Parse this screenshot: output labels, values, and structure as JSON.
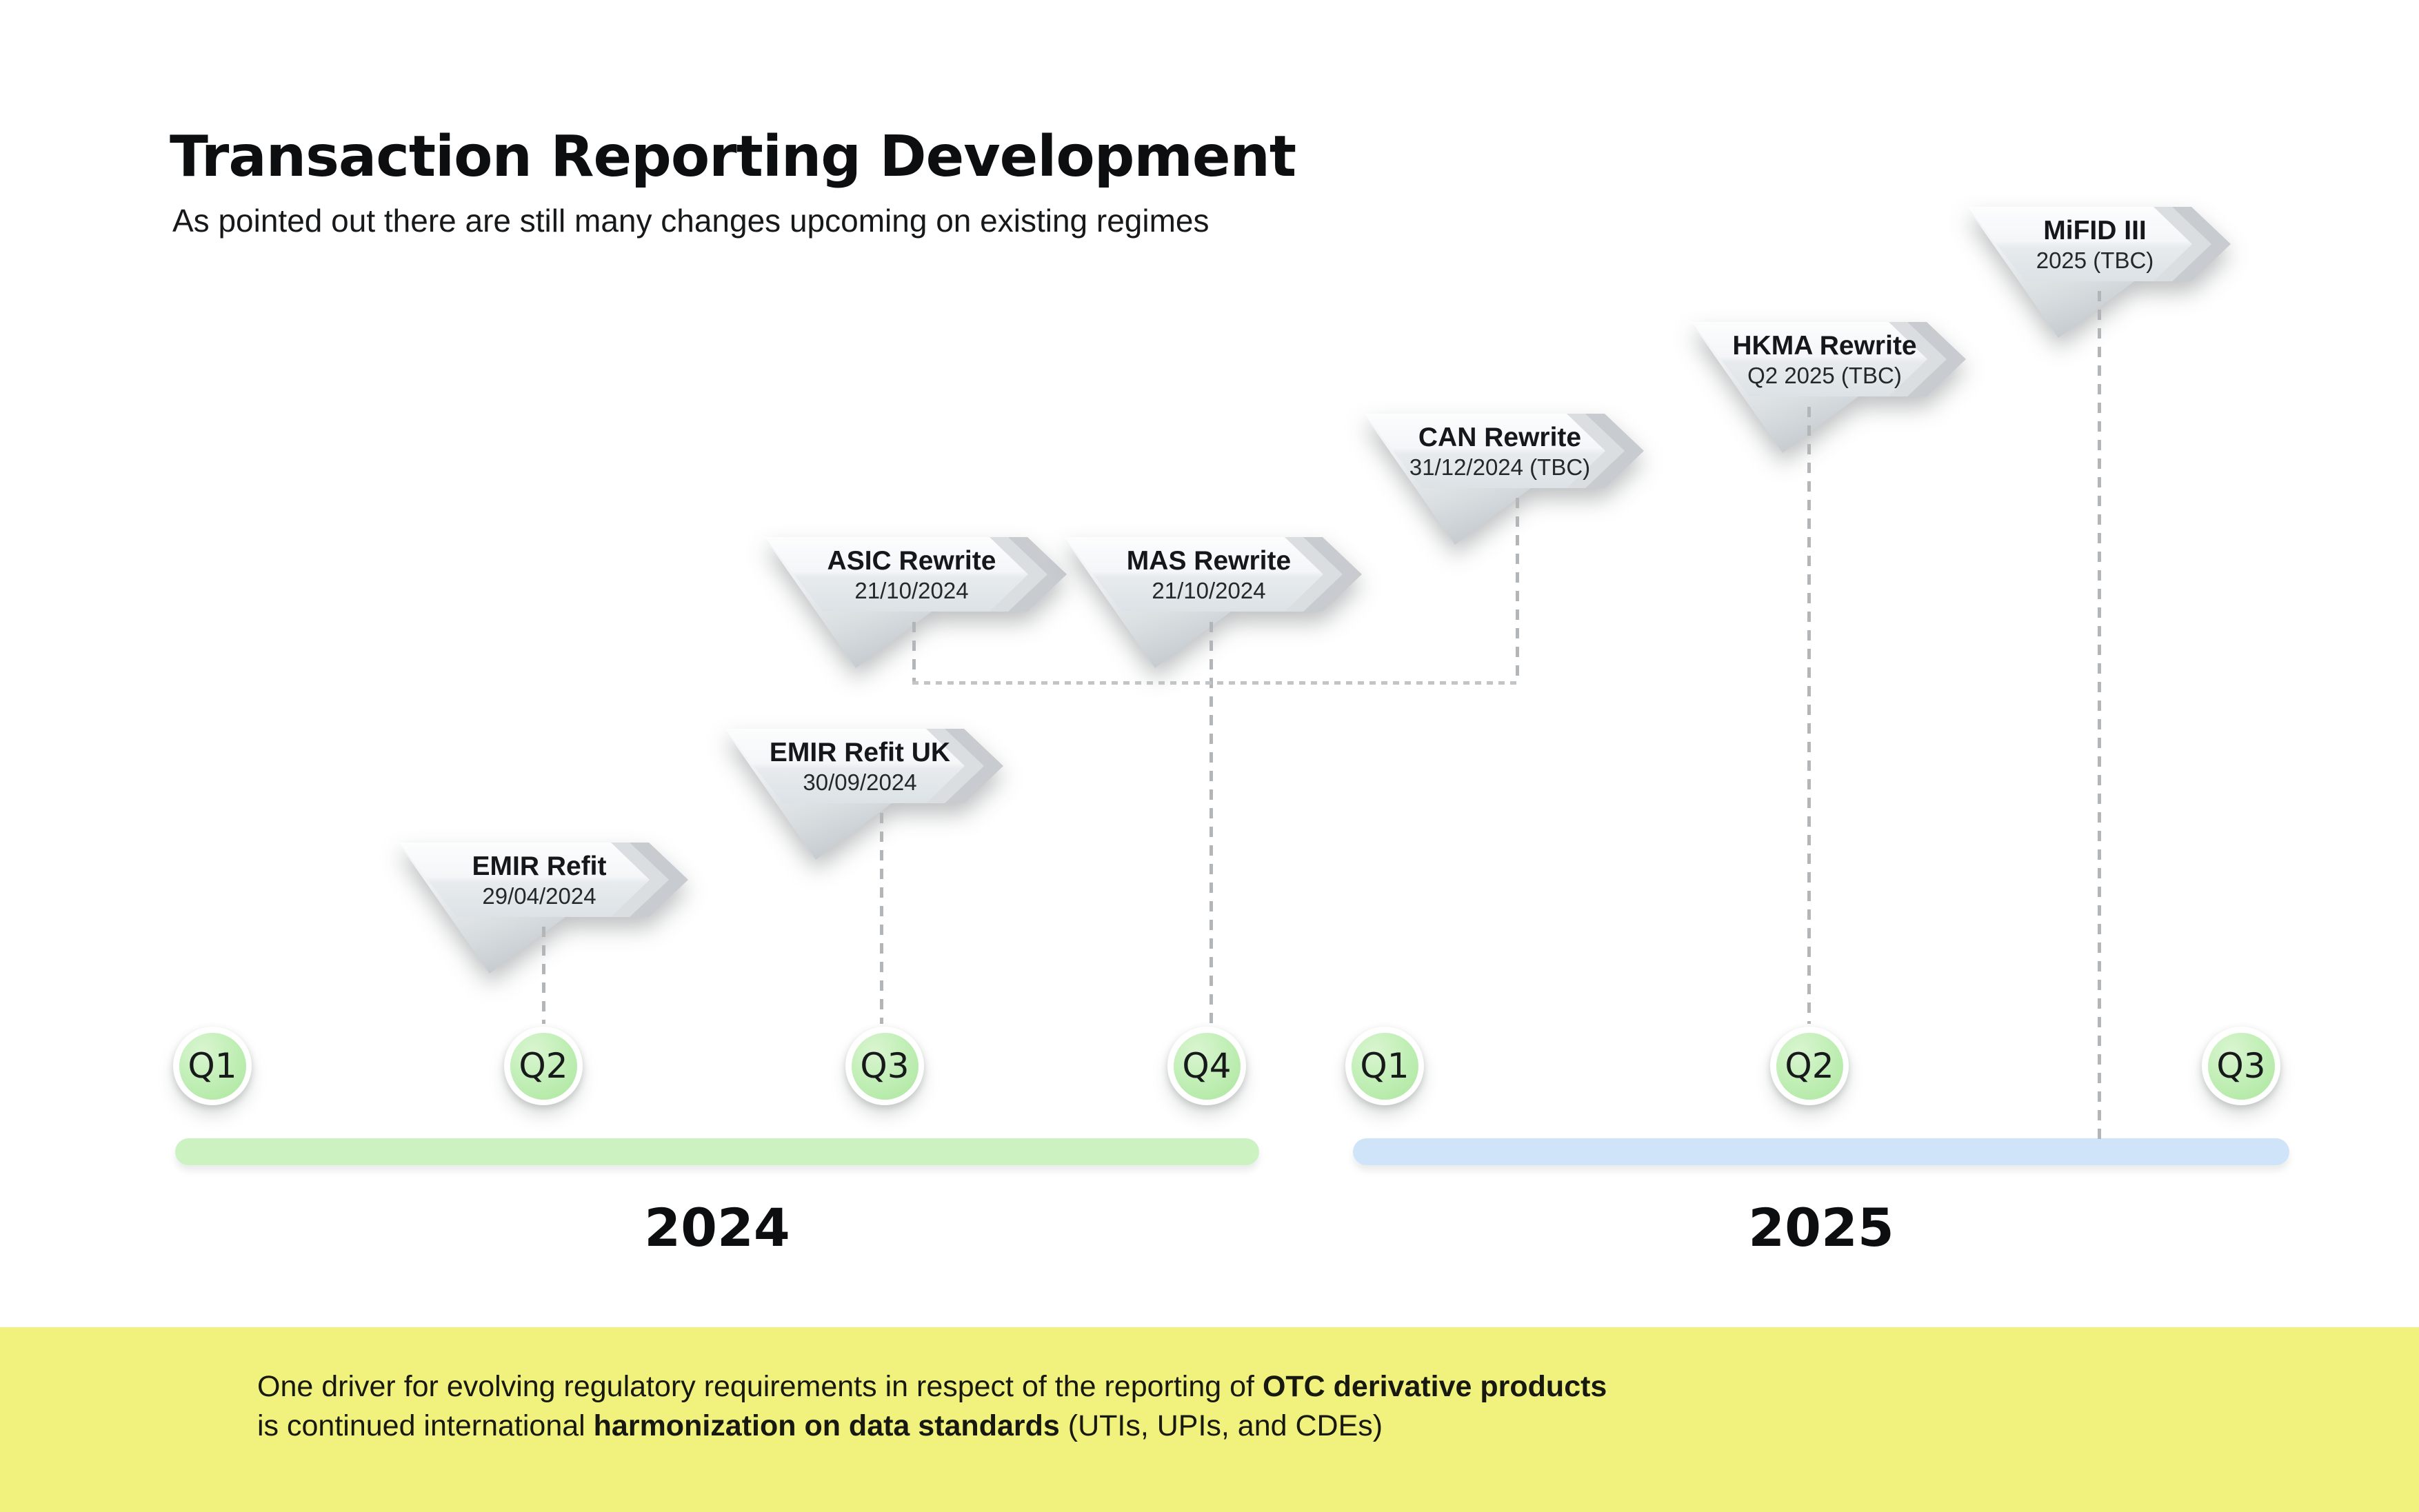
{
  "header": {
    "title": "Transaction Reporting Development",
    "subtitle": "As pointed out there are still many changes upcoming on existing regimes"
  },
  "milestones": [
    {
      "id": "emir-refit",
      "title": "EMIR Refit",
      "date": "29/04/2024"
    },
    {
      "id": "emir-refit-uk",
      "title": "EMIR Refit UK",
      "date": "30/09/2024"
    },
    {
      "id": "asic-rewrite",
      "title": "ASIC Rewrite",
      "date": "21/10/2024"
    },
    {
      "id": "mas-rewrite",
      "title": "MAS Rewrite",
      "date": "21/10/2024"
    },
    {
      "id": "can-rewrite",
      "title": "CAN Rewrite",
      "date": "31/12/2024 (TBC)"
    },
    {
      "id": "hkma-rewrite",
      "title": "HKMA Rewrite",
      "date": "Q2 2025 (TBC)"
    },
    {
      "id": "mifid-iii",
      "title": "MiFID III",
      "date": "2025 (TBC)"
    }
  ],
  "timeline": {
    "quarters": [
      {
        "label": "Q1",
        "year": "2024"
      },
      {
        "label": "Q2",
        "year": "2024"
      },
      {
        "label": "Q3",
        "year": "2024"
      },
      {
        "label": "Q4",
        "year": "2024"
      },
      {
        "label": "Q1",
        "year": "2025"
      },
      {
        "label": "Q2",
        "year": "2025"
      },
      {
        "label": "Q3",
        "year": "2025"
      }
    ],
    "years": [
      {
        "label": "2024",
        "bar_color": "#ccf2c2"
      },
      {
        "label": "2025",
        "bar_color": "#cfe4f8"
      }
    ]
  },
  "footer": {
    "line1_text": "One driver for evolving regulatory requirements in respect of the reporting of ",
    "line1_bold": "OTC derivative products",
    "line2_text": "is continued international ",
    "line2_bold": "harmonization on data standards",
    "line2_tail": " (UTIs, UPIs, and CDEs)",
    "background": "#f1f17d"
  },
  "colors": {
    "quarter_badge_green": "#abe69e",
    "bar_2024_green": "#ccf2c2",
    "bar_2025_blue": "#cfe4f8",
    "banner_face_gray": "#eef1f3",
    "banner_chevron_gray": "#c8ccd0",
    "connector_gray": "#b3b6b8",
    "footer_yellow": "#f1f17d"
  }
}
